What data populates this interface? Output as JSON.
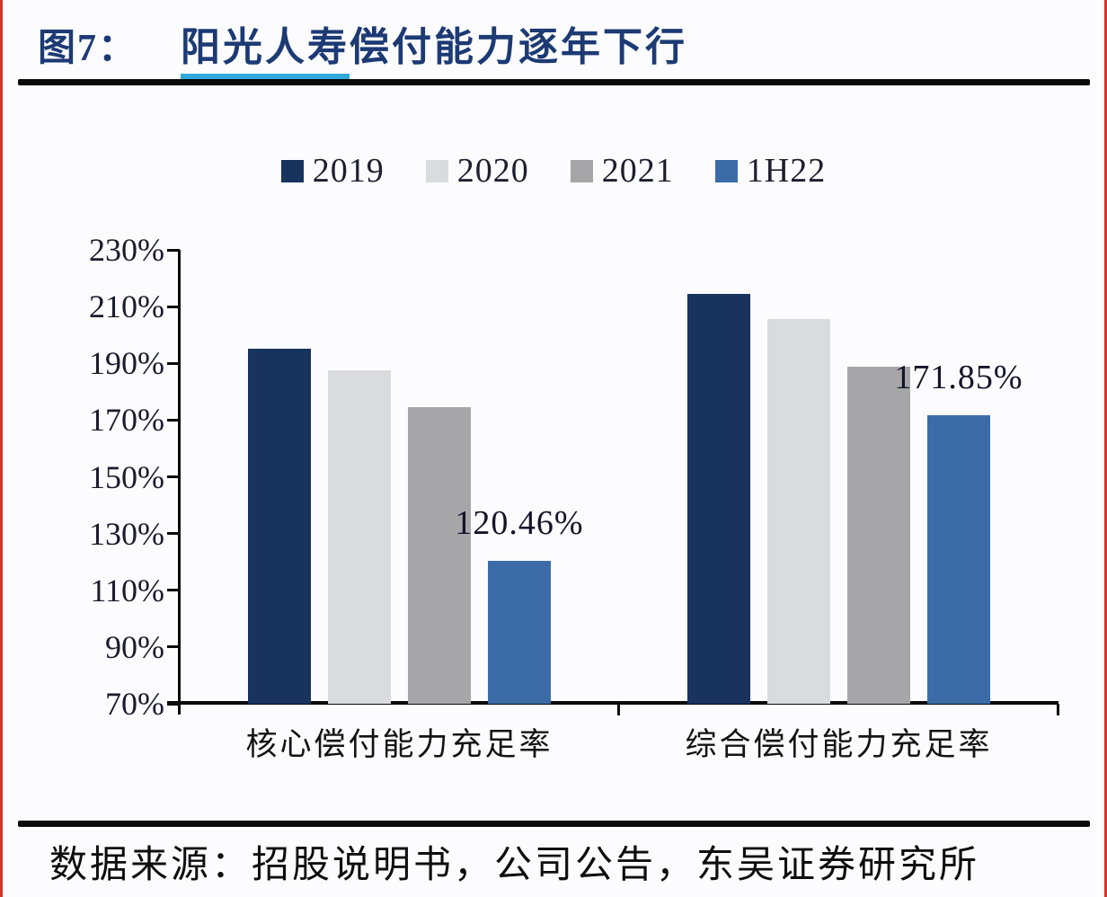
{
  "figure": {
    "label": "图7：",
    "title_highlight": "阳光人寿",
    "title_rest": "偿付能力逐年下行"
  },
  "source": {
    "text": "数据来源：招股说明书，公司公告，东吴证券研究所"
  },
  "colors": {
    "title_navy": "#1C3A74",
    "underline_cyan": "#2FA8DC",
    "rule_black": "#0B0B0B",
    "red_edge": "#D2352B",
    "axis_text": "#1B1B2E",
    "series_2019": "#17335E",
    "series_2020": "#D9DBDE",
    "series_2021": "#A6A6A9",
    "series_1H22": "#3C6CA8"
  },
  "chart_data": {
    "type": "bar",
    "title": "阳光人寿偿付能力逐年下行",
    "categories": [
      "核心偿付能力充足率",
      "综合偿付能力充足率"
    ],
    "series": [
      {
        "name": "2019",
        "color": "#17335E",
        "values": [
          195.2,
          214.5
        ]
      },
      {
        "name": "2020",
        "color": "#D9DBDE",
        "values": [
          187.6,
          205.6
        ]
      },
      {
        "name": "2021",
        "color": "#A6A6A9",
        "values": [
          174.6,
          188.8
        ]
      },
      {
        "name": "1H22",
        "color": "#3C6CA8",
        "values": [
          120.46,
          171.85
        ]
      }
    ],
    "data_labels": [
      {
        "series_index": 3,
        "category_index": 0,
        "text": "120.46%"
      },
      {
        "series_index": 3,
        "category_index": 1,
        "text": "171.85%"
      }
    ],
    "ylim": [
      70,
      230
    ],
    "ytick_step": 20,
    "ytick_labels": [
      "230%",
      "210%",
      "190%",
      "170%",
      "150%",
      "130%",
      "110%",
      "90%",
      "70%"
    ],
    "grid": false,
    "legend_position": "top-center",
    "ylabel": "",
    "xlabel": ""
  }
}
